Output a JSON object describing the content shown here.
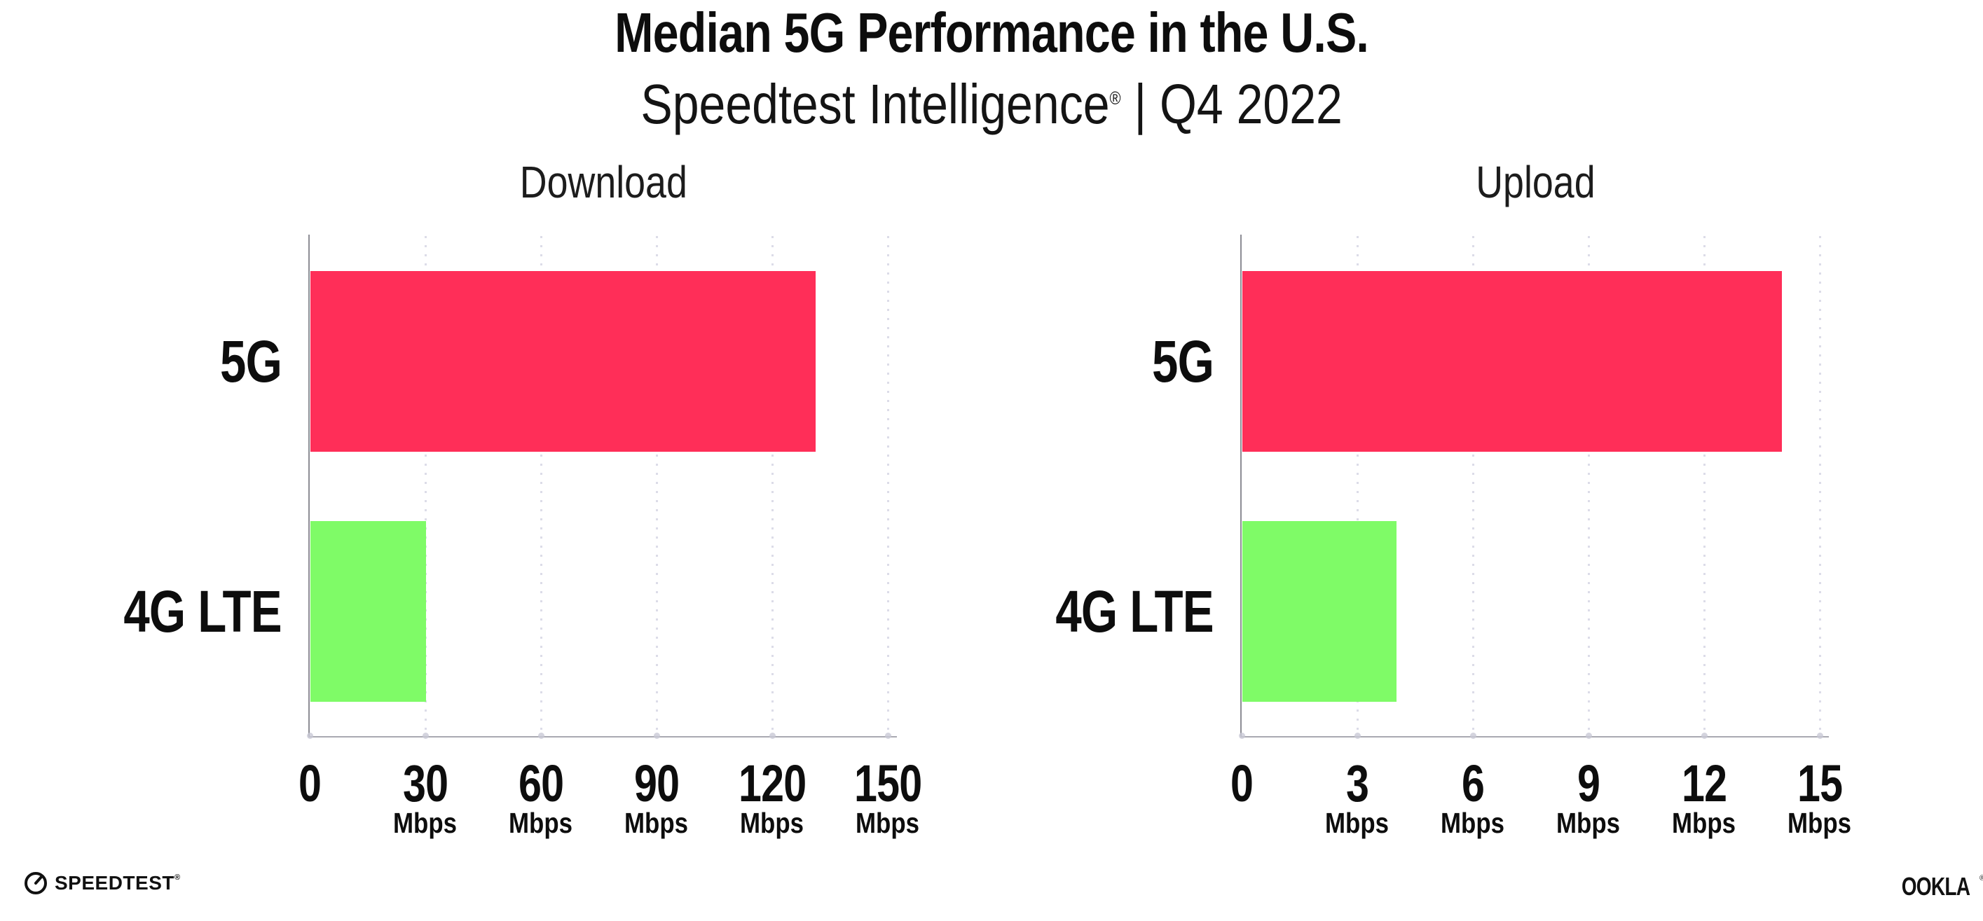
{
  "header": {
    "title": "Median 5G Performance in the U.S.",
    "subtitle_brand": "Speedtest Intelligence",
    "subtitle_reg": "®",
    "subtitle_rest": " | Q4 2022"
  },
  "chart_data": [
    {
      "type": "bar",
      "orientation": "horizontal",
      "title": "Download",
      "categories": [
        "5G",
        "4G LTE"
      ],
      "values": [
        131,
        30
      ],
      "unit": "Mbps",
      "xlim": [
        0,
        150
      ],
      "ticks": [
        0,
        30,
        60,
        90,
        120,
        150
      ],
      "tick_unit": "Mbps",
      "bar_colors": [
        "#FF2E58",
        "#7FFB67"
      ],
      "grid": "vertical-dotted",
      "legend": "none"
    },
    {
      "type": "bar",
      "orientation": "horizontal",
      "title": "Upload",
      "categories": [
        "5G",
        "4G LTE"
      ],
      "values": [
        14,
        4
      ],
      "unit": "Mbps",
      "xlim": [
        0,
        15
      ],
      "ticks": [
        0,
        3,
        6,
        9,
        12,
        15
      ],
      "tick_unit": "Mbps",
      "bar_colors": [
        "#FF2E58",
        "#7FFB67"
      ],
      "grid": "vertical-dotted",
      "legend": "none"
    }
  ],
  "footer": {
    "speedtest_label": "SPEEDTEST",
    "speedtest_reg": "®",
    "ookla_label": "OOKLA",
    "ookla_reg": "®"
  },
  "colors": {
    "bar_5g": "#FF2E58",
    "bar_4g_lte": "#7FFB67",
    "y_axis_line": "#8d8d95",
    "x_axis_line": "#a9a9b1",
    "gridline_dot": "#dcdce8",
    "tick_dot": "#c9c9d6",
    "text": "#0d0d0d",
    "background": "#ffffff"
  }
}
